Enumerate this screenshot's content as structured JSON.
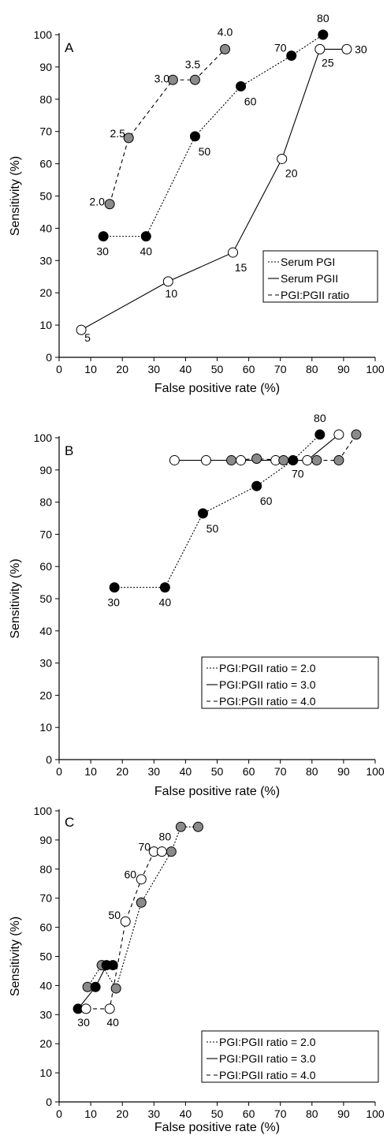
{
  "chart_data": [
    {
      "type": "line",
      "panel": "A",
      "xlabel": "False positive rate (%)",
      "ylabel": "Sensitivity (%)",
      "xlim": [
        0,
        100
      ],
      "ylim": [
        0,
        100
      ],
      "xticks": [
        0,
        10,
        20,
        30,
        40,
        50,
        60,
        70,
        80,
        90,
        100
      ],
      "yticks": [
        0,
        10,
        20,
        30,
        40,
        50,
        60,
        70,
        80,
        90,
        100
      ],
      "grid": false,
      "legend_position": "bottom-right",
      "series": [
        {
          "name": "Serum PGI",
          "line": "dotted",
          "marker": "black",
          "points": [
            {
              "x": 14,
              "y": 37.5,
              "label": "30"
            },
            {
              "x": 27.5,
              "y": 37.5,
              "label": "40"
            },
            {
              "x": 43,
              "y": 68.5,
              "label": "50"
            },
            {
              "x": 57.5,
              "y": 84,
              "label": "60"
            },
            {
              "x": 73.5,
              "y": 93.5,
              "label": "70"
            },
            {
              "x": 83.5,
              "y": 100,
              "label": "80"
            }
          ]
        },
        {
          "name": "Serum PGII",
          "line": "solid",
          "marker": "white",
          "points": [
            {
              "x": 7,
              "y": 8.5,
              "label": "5"
            },
            {
              "x": 34.5,
              "y": 23.5,
              "label": "10"
            },
            {
              "x": 55,
              "y": 32.5,
              "label": "15"
            },
            {
              "x": 70.5,
              "y": 61.5,
              "label": "20"
            },
            {
              "x": 82.5,
              "y": 95.5,
              "label": "25"
            },
            {
              "x": 91,
              "y": 95.5,
              "label": "30"
            }
          ]
        },
        {
          "name": "PGI:PGII ratio",
          "line": "dashed",
          "marker": "grey",
          "points": [
            {
              "x": 16,
              "y": 47.5,
              "label": "2.0"
            },
            {
              "x": 22,
              "y": 68,
              "label": "2.5"
            },
            {
              "x": 36,
              "y": 86,
              "label": "3.0"
            },
            {
              "x": 43,
              "y": 86,
              "label": "3.5"
            },
            {
              "x": 52.5,
              "y": 95.5,
              "label": "4.0"
            }
          ]
        }
      ]
    },
    {
      "type": "line",
      "panel": "B",
      "xlabel": "False positive rate (%)",
      "ylabel": "Sensitivity (%)",
      "xlim": [
        0,
        100
      ],
      "ylim": [
        0,
        100
      ],
      "xticks": [
        0,
        10,
        20,
        30,
        40,
        50,
        60,
        70,
        80,
        90,
        100
      ],
      "yticks": [
        0,
        10,
        20,
        30,
        40,
        50,
        60,
        70,
        80,
        90,
        100
      ],
      "grid": false,
      "legend_position": "bottom-right",
      "series": [
        {
          "name": "PGI:PGII ratio = 2.0",
          "line": "dotted",
          "marker": "black",
          "points": [
            {
              "x": 17.5,
              "y": 53.5,
              "label": "30"
            },
            {
              "x": 33.5,
              "y": 53.5,
              "label": "40"
            },
            {
              "x": 45.5,
              "y": 76.5,
              "label": "50"
            },
            {
              "x": 62.5,
              "y": 85,
              "label": "60"
            },
            {
              "x": 74,
              "y": 93,
              "label": "70"
            },
            {
              "x": 82.5,
              "y": 101,
              "label": "80"
            }
          ]
        },
        {
          "name": "PGI:PGII ratio = 3.0",
          "line": "solid",
          "marker": "white",
          "points": [
            {
              "x": 36.5,
              "y": 93
            },
            {
              "x": 46.5,
              "y": 93
            },
            {
              "x": 57.5,
              "y": 93
            },
            {
              "x": 68.5,
              "y": 93
            },
            {
              "x": 78.5,
              "y": 93
            },
            {
              "x": 88.5,
              "y": 101
            }
          ]
        },
        {
          "name": "PGI:PGII ratio = 4.0",
          "line": "dashed",
          "marker": "grey",
          "points": [
            {
              "x": 54.5,
              "y": 93
            },
            {
              "x": 62.5,
              "y": 93.5
            },
            {
              "x": 71,
              "y": 93
            },
            {
              "x": 81.5,
              "y": 93
            },
            {
              "x": 88.5,
              "y": 93
            },
            {
              "x": 94,
              "y": 101
            }
          ]
        }
      ]
    },
    {
      "type": "line",
      "panel": "C",
      "xlabel": "False positive rate (%)",
      "ylabel": "Sensitivity (%)",
      "xlim": [
        0,
        100
      ],
      "ylim": [
        0,
        100
      ],
      "xticks": [
        0,
        10,
        20,
        30,
        40,
        50,
        60,
        70,
        80,
        90,
        100
      ],
      "yticks": [
        0,
        10,
        20,
        30,
        40,
        50,
        60,
        70,
        80,
        90,
        100
      ],
      "grid": false,
      "legend_position": "bottom-right",
      "series": [
        {
          "name": "PGI:PGII ratio = 2.0",
          "line": "dotted",
          "marker": "grey",
          "points": [
            {
              "x": 9,
              "y": 39.5
            },
            {
              "x": 13.5,
              "y": 47
            },
            {
              "x": 18,
              "y": 39
            },
            {
              "x": 26,
              "y": 68.5
            },
            {
              "x": 35.5,
              "y": 86
            },
            {
              "x": 38.5,
              "y": 94.5
            },
            {
              "x": 44,
              "y": 94.5
            }
          ]
        },
        {
          "name": "PGI:PGII ratio = 3.0",
          "line": "solid",
          "marker": "black",
          "points": [
            {
              "x": 6,
              "y": 32
            },
            {
              "x": 11.5,
              "y": 39.5
            },
            {
              "x": 15,
              "y": 47
            },
            {
              "x": 17,
              "y": 47
            }
          ]
        },
        {
          "name": "PGI:PGII ratio = 4.0",
          "line": "dashed",
          "marker": "white",
          "points": [
            {
              "x": 8.5,
              "y": 32,
              "label": "30"
            },
            {
              "x": 16,
              "y": 32,
              "label": "40"
            },
            {
              "x": 21,
              "y": 62,
              "label": "50"
            },
            {
              "x": 26,
              "y": 76.5,
              "label": "60"
            },
            {
              "x": 30,
              "y": 86,
              "label": "70"
            },
            {
              "x": 32.5,
              "y": 86,
              "label": "80"
            }
          ]
        }
      ]
    }
  ]
}
